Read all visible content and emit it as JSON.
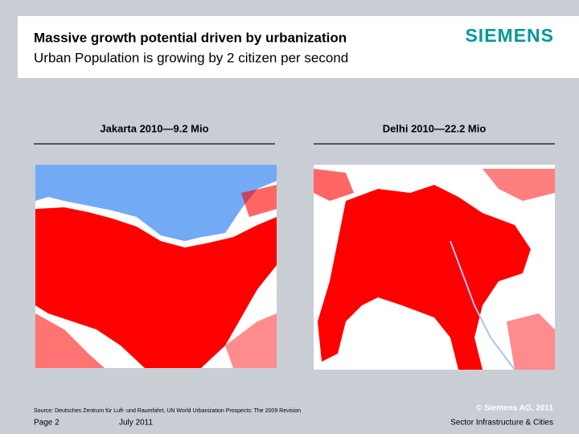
{
  "header": {
    "title": "Massive growth potential driven by urbanization",
    "subtitle": "Urban Population is growing by 2 citizen per second",
    "logo": "SIEMENS"
  },
  "panels": [
    {
      "caption": "Jakarta 2010—9.2 Mio"
    },
    {
      "caption": "Delhi 2010—22.2 Mio"
    }
  ],
  "footer": {
    "source": "Source: Deutsches Zentrum für Luft- und Raumfahrt, UN World Urbanization Prospects: The 2009 Revision",
    "page": "Page 2",
    "date": "July 2011",
    "copyright": "© Siemens AG, 2011",
    "division": "Sector Infrastructure & Cities"
  }
}
